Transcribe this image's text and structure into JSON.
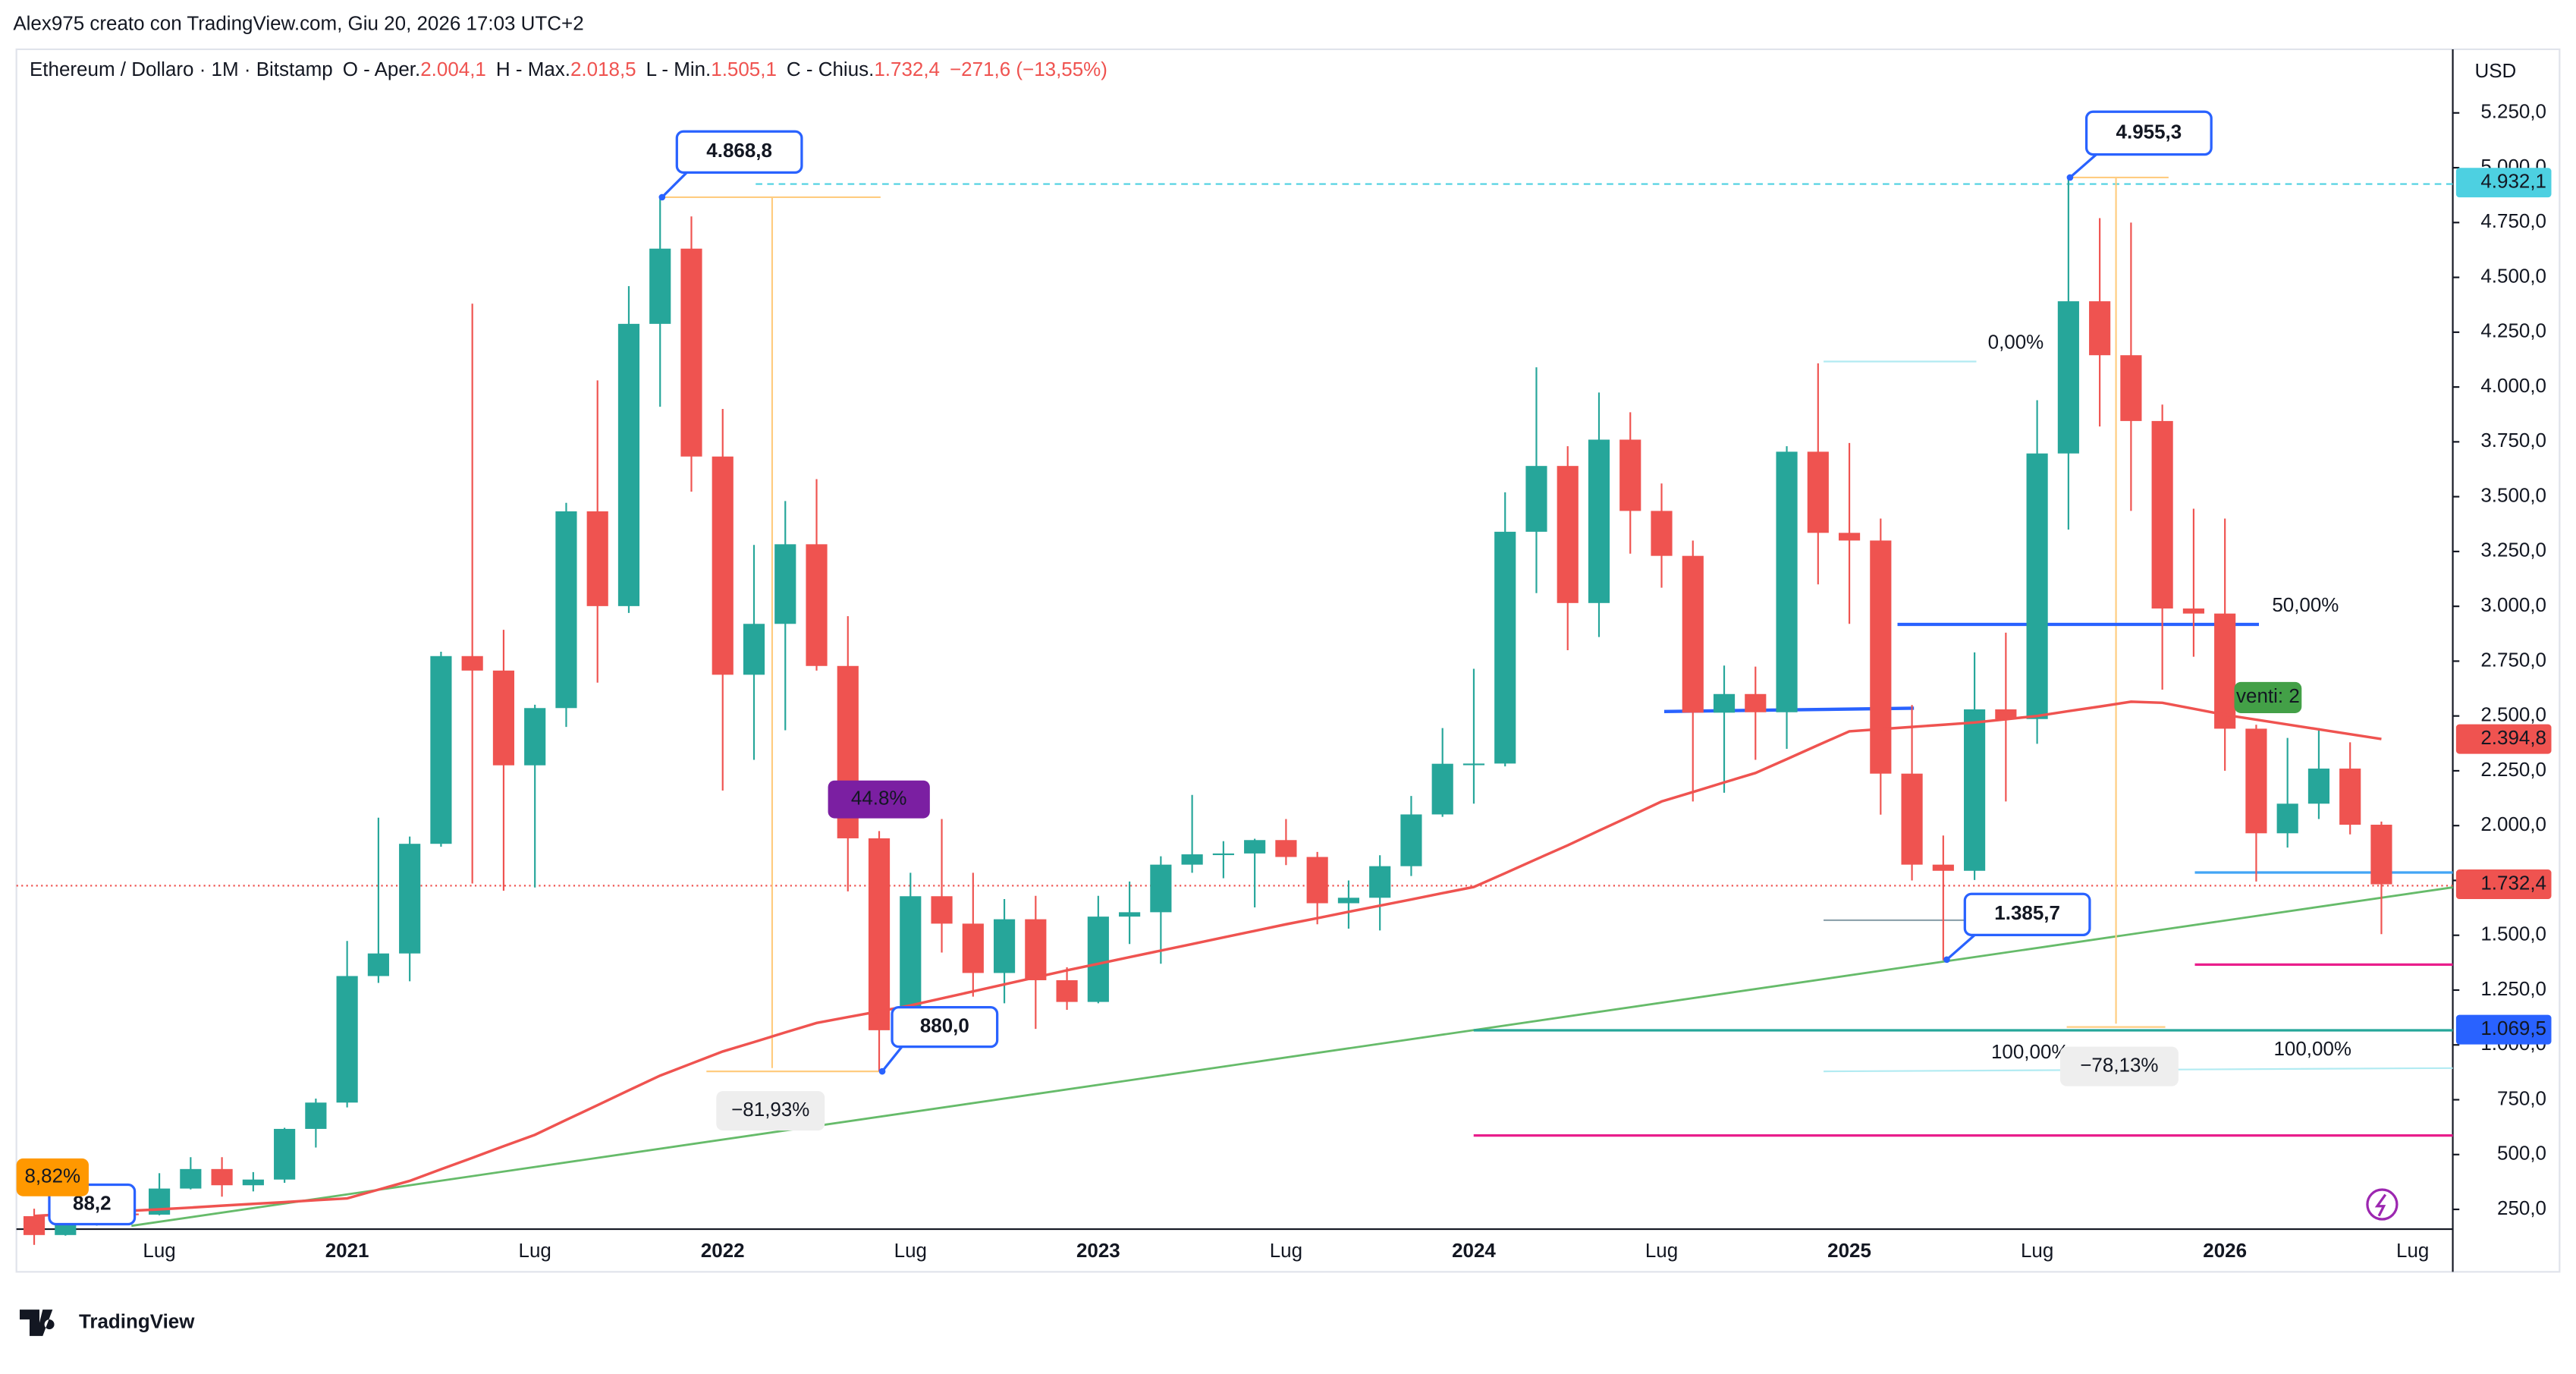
{
  "top_note": "Alex975 creato con TradingView.com, Giu 20, 2026 17:03 UTC+2",
  "footer": "TradingView",
  "header": {
    "title": "Ethereum / Dollaro · 1M · Bitstamp",
    "ohlc_labels": [
      "O - Aper.",
      "H - Max.",
      "L - Min.",
      "C - Chius."
    ],
    "ohlc_values": [
      "2.004,1",
      "2.018,5",
      "1.505,1",
      "1.732,4"
    ],
    "change": "−271,6 (−13,55%)"
  },
  "chart_data": {
    "type": "candlestick",
    "currency": "USD",
    "up_color": "#26a69a",
    "down_color": "#ef5350",
    "categories": [
      null,
      null,
      null,
      null,
      "Lug",
      null,
      null,
      null,
      null,
      null,
      "2021",
      null,
      null,
      null,
      null,
      null,
      "Lug",
      null,
      null,
      null,
      null,
      null,
      "2022",
      null,
      null,
      null,
      null,
      null,
      "Lug",
      null,
      null,
      null,
      null,
      null,
      "2023",
      null,
      null,
      null,
      null,
      null,
      "Lug",
      null,
      null,
      null,
      null,
      null,
      "2024",
      null,
      null,
      null,
      null,
      null,
      "Lug",
      null,
      null,
      null,
      null,
      null,
      "2025",
      null,
      null,
      null,
      null,
      null,
      "Lug",
      null,
      null,
      null,
      null,
      null,
      "2026",
      null,
      null,
      null,
      null,
      null,
      "Lug"
    ],
    "open": [
      219,
      133,
      206,
      231,
      226,
      345,
      434,
      360,
      386,
      617,
      737,
      1314,
      1417,
      1917,
      2773,
      2707,
      2275,
      2536,
      3433,
      3001,
      4288,
      4631,
      3683,
      2688,
      2920,
      3283,
      2728,
      1942,
      1067,
      1678,
      1553,
      1328,
      1573,
      1295,
      1196,
      1585,
      1605,
      1822,
      1869,
      1873,
      1934,
      1857,
      1646,
      1671,
      1815,
      2051,
      2282,
      2283,
      3340,
      3640,
      3015,
      3760,
      3435,
      3230,
      2515,
      2600,
      2517,
      3705,
      3335,
      3300,
      2237,
      1822,
      1794,
      2530,
      2486,
      3697,
      4391,
      4145,
      3845,
      2990,
      2967,
      2442,
      1965,
      2100,
      2260,
      2004.1,
      null
    ],
    "high": [
      253,
      227,
      246,
      253,
      415,
      488,
      488,
      420,
      622,
      755,
      1474,
      2036,
      1950,
      2793,
      4380,
      2893,
      2551,
      3472,
      4030,
      4460,
      4868.8,
      4778,
      3900,
      3280,
      3480,
      3580,
      2955,
      1975,
      1785,
      2030,
      1785,
      1665,
      1680,
      1354,
      1680,
      1745,
      1860,
      2140,
      1929,
      1940,
      2030,
      1880,
      1750,
      1865,
      2135,
      2445,
      2715,
      3520,
      4090,
      3730,
      3975,
      3885,
      3560,
      3300,
      2730,
      2725,
      3730,
      4108,
      3745,
      3400,
      2550,
      1955,
      2790,
      2880,
      3940,
      4955.3,
      4770,
      4750,
      3920,
      3445,
      3400,
      2460,
      2400,
      2445,
      2380,
      2018.5,
      null
    ],
    "low": [
      88.2,
      130,
      176,
      215,
      223,
      341,
      308,
      332,
      371,
      532,
      715,
      1283,
      1290,
      1904,
      1736,
      1703,
      1718,
      2450,
      2652,
      2970,
      3910,
      3523,
      2160,
      2300,
      2435,
      2707,
      1700,
      880,
      1000,
      1421,
      1220,
      1190,
      1073,
      1160,
      1190,
      1460,
      1370,
      1785,
      1760,
      1627,
      1820,
      1550,
      1530,
      1522,
      1770,
      2040,
      2100,
      2270,
      3060,
      2800,
      2860,
      3240,
      3085,
      2110,
      2150,
      2300,
      2350,
      3100,
      2920,
      2050,
      1750,
      1385.7,
      1752,
      2110,
      2373,
      3350,
      3820,
      3435,
      2620,
      2770,
      2250,
      1745,
      1900,
      2030,
      1960,
      1505.1,
      null
    ],
    "close": [
      133,
      206,
      231,
      226,
      345,
      434,
      360,
      386,
      617,
      737,
      1314,
      1417,
      1917,
      2773,
      2707,
      2275,
      2536,
      3433,
      3001,
      4288,
      4631,
      3683,
      2688,
      2920,
      3283,
      2728,
      1942,
      1067,
      1678,
      1553,
      1328,
      1573,
      1295,
      1196,
      1585,
      1605,
      1822,
      1869,
      1873,
      1934,
      1857,
      1646,
      1671,
      1815,
      2051,
      2282,
      2283,
      3340,
      3640,
      3015,
      3760,
      3435,
      3230,
      2515,
      2600,
      2517,
      3705,
      3335,
      3300,
      2237,
      1822,
      1794,
      2530,
      2486,
      3697,
      4391,
      4145,
      3845,
      2990,
      2967,
      2442,
      1965,
      2100,
      2260,
      2004.1,
      1732.4,
      null
    ],
    "moving_average": {
      "color": "#ef5350",
      "values": [
        220,
        228,
        235,
        243,
        250,
        258,
        267,
        275,
        283,
        292,
        300,
        340,
        380,
        433,
        485,
        538,
        590,
        658,
        725,
        793,
        860,
        915,
        970,
        1013,
        1057,
        1100,
        1127,
        1153,
        1180,
        1212,
        1244,
        1276,
        1308,
        1340,
        1370,
        1400,
        1430,
        1460,
        1490,
        1520,
        1550,
        1578,
        1607,
        1635,
        1663,
        1692,
        1720,
        1783,
        1847,
        1910,
        1977,
        2043,
        2110,
        2153,
        2197,
        2240,
        2303,
        2367,
        2430,
        2440,
        2450,
        2460,
        2470,
        2485,
        2500,
        2522,
        2543,
        2565,
        2560,
        2533,
        2505,
        2483,
        2461,
        2439,
        2417,
        2394.8,
        null
      ]
    },
    "ylim": [
      160,
      5540
    ],
    "yticks": [
      {
        "value": 250,
        "label": "250,0"
      },
      {
        "value": 500,
        "label": "500,0"
      },
      {
        "value": 750,
        "label": "750,0"
      },
      {
        "value": 1000,
        "label": "1.000,0"
      },
      {
        "value": 1250,
        "label": "1.250,0"
      },
      {
        "value": 1500,
        "label": "1.500,0"
      },
      {
        "value": 1750,
        "label": "1.750,0"
      },
      {
        "value": 2000,
        "label": "2.000,0"
      },
      {
        "value": 2250,
        "label": "2.250,0"
      },
      {
        "value": 2500,
        "label": "2.500,0"
      },
      {
        "value": 2750,
        "label": "2.750,0"
      },
      {
        "value": 3000,
        "label": "3.000,0"
      },
      {
        "value": 3250,
        "label": "3.250,0"
      },
      {
        "value": 3500,
        "label": "3.500,0"
      },
      {
        "value": 3750,
        "label": "3.750,0"
      },
      {
        "value": 4000,
        "label": "4.000,0"
      },
      {
        "value": 4250,
        "label": "4.250,0"
      },
      {
        "value": 4500,
        "label": "4.500,0"
      },
      {
        "value": 4750,
        "label": "4.750,0"
      },
      {
        "value": 5000,
        "label": "5.000,0"
      },
      {
        "value": 5250,
        "label": "5.250,0"
      }
    ],
    "grid": false,
    "price_labels": [
      {
        "value": 4932.1,
        "label": "4.932,1",
        "color": "#4dd0e1",
        "text_color": "#131722"
      },
      {
        "value": 2394.8,
        "label": "2.394,8",
        "color": "#ef5350",
        "text_color": "#ffffff"
      },
      {
        "value": 1732.4,
        "label": "1.732,4",
        "color": "#ef5350",
        "text_color": "#ffffff"
      },
      {
        "value": 1069.5,
        "label": "1.069,5",
        "color": "#2962ff",
        "text_color": "#ffffff"
      }
    ],
    "annotations": [
      "4.868,8",
      "4.955,3",
      "88,2",
      "880,0",
      "1.385,7",
      "44.8%",
      "8,82%",
      "venti: 2",
      "0,00%",
      "50,00%",
      "100,00%",
      "100,00%",
      "−81,93%",
      "−78,13%"
    ]
  }
}
